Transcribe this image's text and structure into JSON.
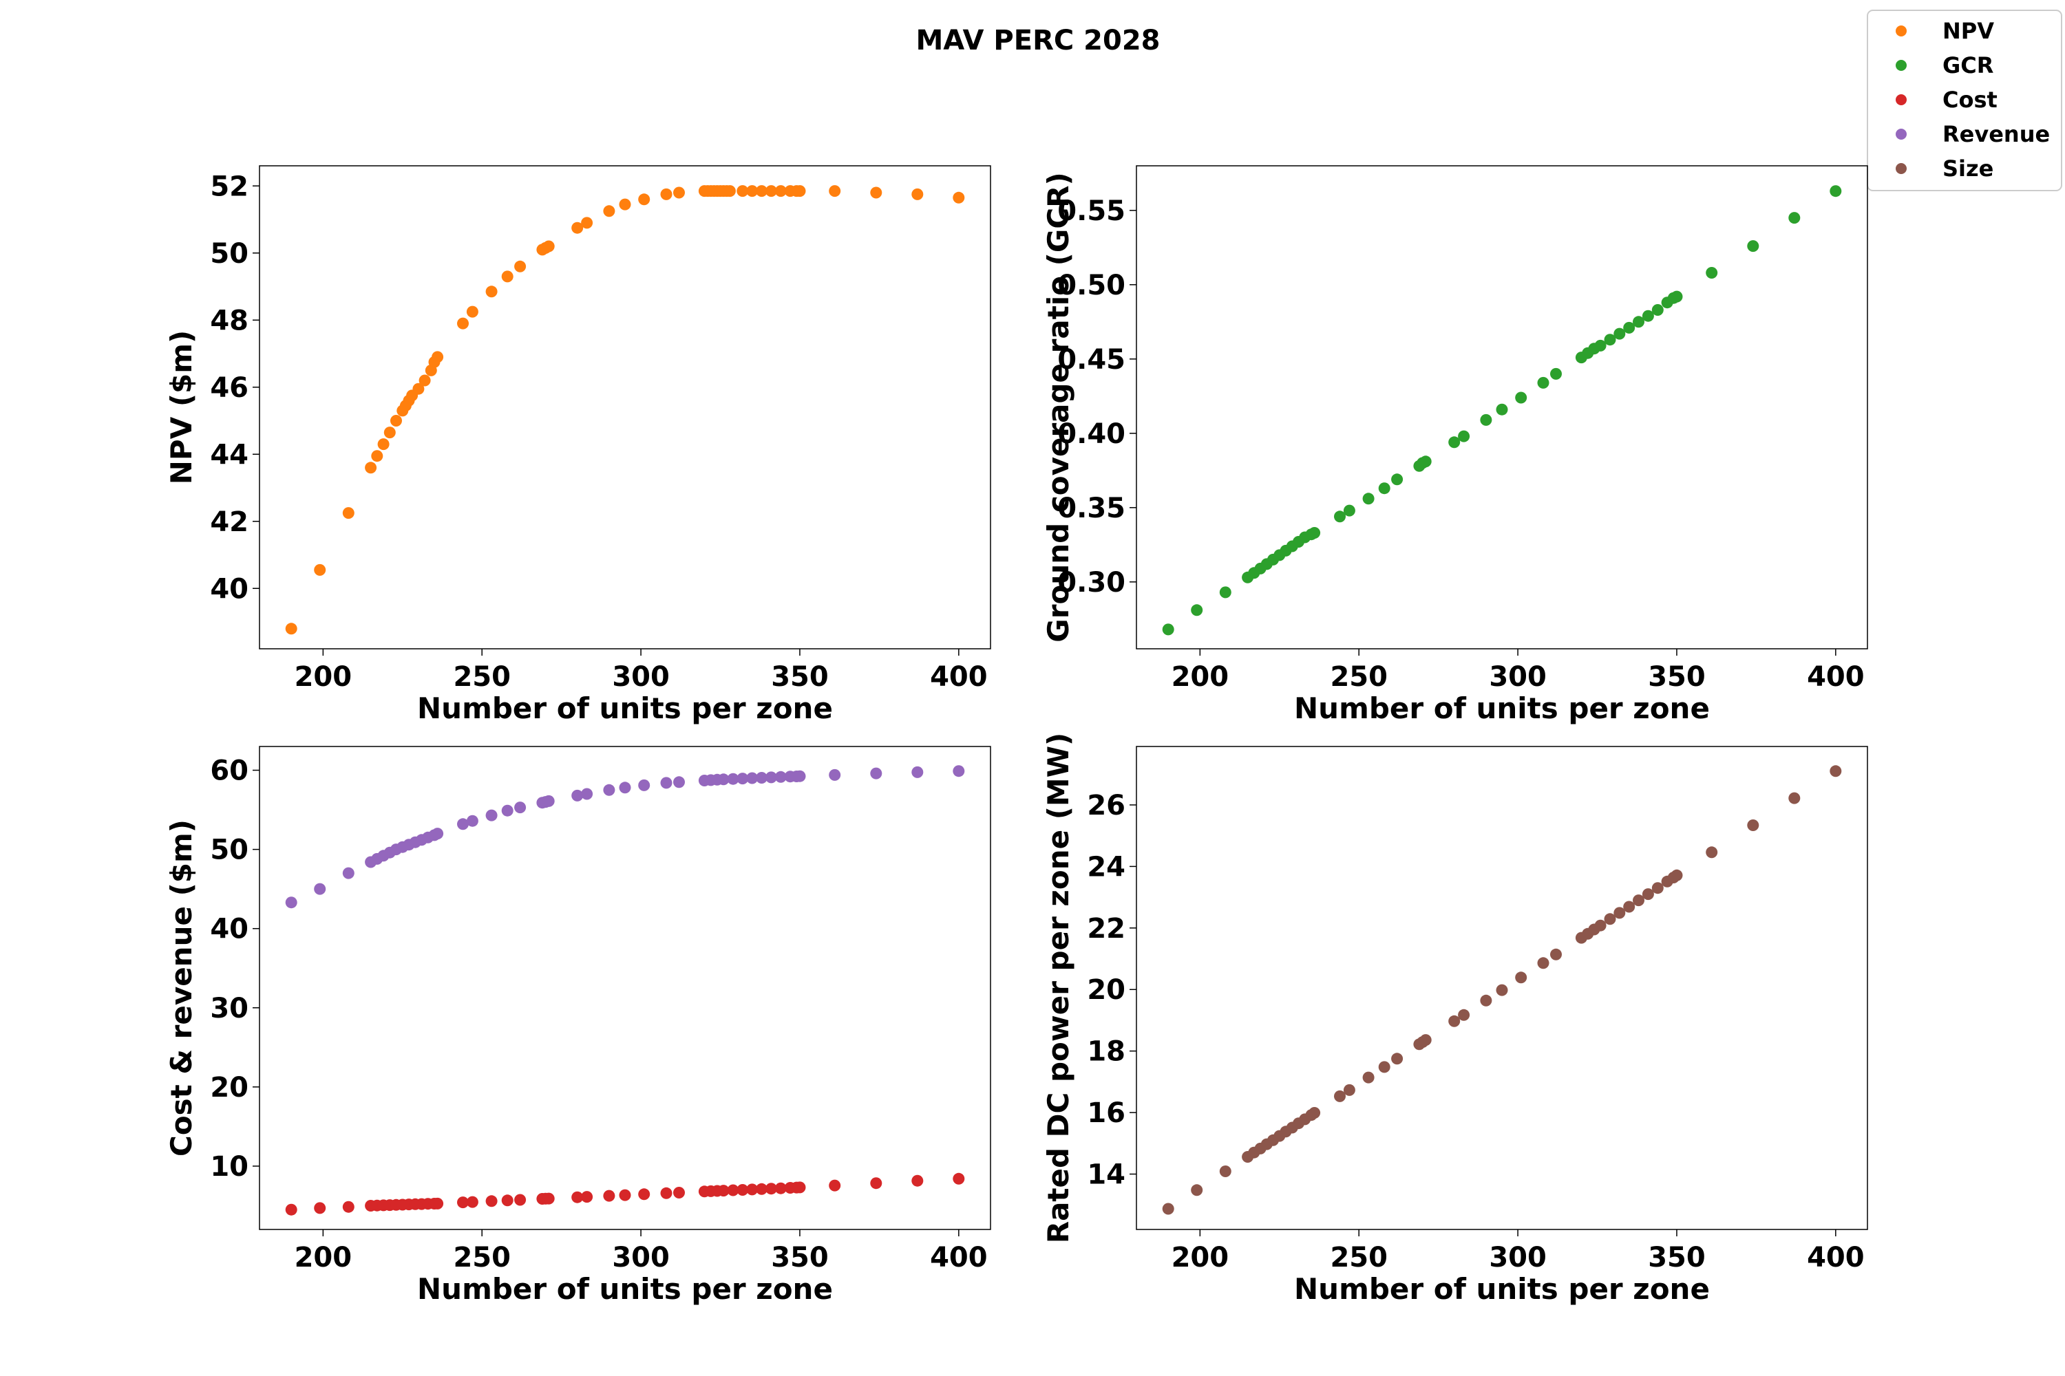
{
  "figure": {
    "title": "MAV PERC 2028"
  },
  "legend": {
    "entries": [
      {
        "label": "NPV",
        "color": "#ff7f0e"
      },
      {
        "label": "GCR",
        "color": "#2ca02c"
      },
      {
        "label": "Cost",
        "color": "#d62728"
      },
      {
        "label": "Revenue",
        "color": "#9467bd"
      },
      {
        "label": "Size",
        "color": "#8c564b"
      }
    ]
  },
  "chart_data": [
    {
      "type": "scatter",
      "title": "",
      "xlabel": "Number of units per zone",
      "ylabel": "NPV ($m)",
      "xlim": [
        180,
        410
      ],
      "ylim": [
        38.2,
        52.6
      ],
      "xticks": [
        200,
        250,
        300,
        350,
        400
      ],
      "yticks": [
        40,
        42,
        44,
        46,
        48,
        50,
        52
      ],
      "series": [
        {
          "color": "#ff7f0e",
          "x": [
            190,
            199,
            208,
            215,
            217,
            219,
            221,
            223,
            225,
            226,
            227,
            228,
            230,
            232,
            234,
            235,
            236,
            244,
            247,
            253,
            258,
            262,
            269,
            270,
            271,
            280,
            283,
            290,
            295,
            301,
            308,
            312,
            320,
            321,
            322,
            323,
            324,
            325,
            326,
            327,
            328,
            332,
            335,
            338,
            341,
            344,
            347,
            349,
            350,
            361,
            374,
            387,
            400
          ],
          "y": [
            38.8,
            40.55,
            42.25,
            43.6,
            43.95,
            44.3,
            44.65,
            45.0,
            45.3,
            45.45,
            45.6,
            45.75,
            45.95,
            46.2,
            46.5,
            46.75,
            46.9,
            47.9,
            48.25,
            48.85,
            49.3,
            49.6,
            50.1,
            50.15,
            50.2,
            50.75,
            50.9,
            51.25,
            51.45,
            51.6,
            51.75,
            51.8,
            51.85,
            51.85,
            51.85,
            51.85,
            51.85,
            51.85,
            51.85,
            51.85,
            51.85,
            51.85,
            51.85,
            51.85,
            51.85,
            51.85,
            51.85,
            51.85,
            51.85,
            51.85,
            51.8,
            51.75,
            51.65
          ]
        }
      ]
    },
    {
      "type": "scatter",
      "title": "",
      "xlabel": "Number of units per zone",
      "ylabel": "Ground coverage ratio (GCR)",
      "xlim": [
        180,
        410
      ],
      "ylim": [
        0.255,
        0.58
      ],
      "xticks": [
        200,
        250,
        300,
        350,
        400
      ],
      "yticks": [
        0.3,
        0.35,
        0.4,
        0.45,
        0.5,
        0.55
      ],
      "ytick_labels": [
        "0.30",
        "0.35",
        "0.40",
        "0.45",
        "0.50",
        "0.55"
      ],
      "series": [
        {
          "color": "#2ca02c",
          "x": [
            190,
            199,
            208,
            215,
            217,
            219,
            221,
            223,
            225,
            227,
            229,
            231,
            233,
            235,
            236,
            244,
            247,
            253,
            258,
            262,
            269,
            270,
            271,
            280,
            283,
            290,
            295,
            301,
            308,
            312,
            320,
            322,
            324,
            326,
            329,
            332,
            335,
            338,
            341,
            344,
            347,
            349,
            350,
            361,
            374,
            387,
            400
          ],
          "y": [
            0.268,
            0.281,
            0.293,
            0.303,
            0.306,
            0.309,
            0.312,
            0.315,
            0.318,
            0.321,
            0.324,
            0.327,
            0.33,
            0.332,
            0.333,
            0.344,
            0.348,
            0.356,
            0.363,
            0.369,
            0.378,
            0.38,
            0.381,
            0.394,
            0.398,
            0.409,
            0.416,
            0.424,
            0.434,
            0.44,
            0.451,
            0.454,
            0.457,
            0.459,
            0.463,
            0.467,
            0.471,
            0.475,
            0.479,
            0.483,
            0.488,
            0.491,
            0.492,
            0.508,
            0.526,
            0.545,
            0.563
          ]
        }
      ]
    },
    {
      "type": "scatter",
      "title": "",
      "xlabel": "Number of units per zone",
      "ylabel": "Cost & revenue ($m)",
      "xlim": [
        180,
        410
      ],
      "ylim": [
        2.0,
        63.0
      ],
      "xticks": [
        200,
        250,
        300,
        350,
        400
      ],
      "yticks": [
        10,
        20,
        30,
        40,
        50,
        60
      ],
      "series": [
        {
          "color": "#d62728",
          "x": [
            190,
            199,
            208,
            215,
            217,
            219,
            221,
            223,
            225,
            227,
            229,
            231,
            233,
            235,
            236,
            244,
            247,
            253,
            258,
            262,
            269,
            270,
            271,
            280,
            283,
            290,
            295,
            301,
            308,
            312,
            320,
            322,
            324,
            326,
            329,
            332,
            335,
            338,
            341,
            344,
            347,
            349,
            350,
            361,
            374,
            387,
            400
          ],
          "y": [
            4.5,
            4.7,
            4.85,
            5.0,
            5.02,
            5.05,
            5.08,
            5.1,
            5.13,
            5.16,
            5.19,
            5.21,
            5.24,
            5.26,
            5.27,
            5.42,
            5.47,
            5.58,
            5.67,
            5.74,
            5.87,
            5.88,
            5.9,
            6.07,
            6.12,
            6.25,
            6.34,
            6.45,
            6.58,
            6.65,
            6.8,
            6.83,
            6.87,
            6.9,
            6.95,
            7.0,
            7.05,
            7.1,
            7.15,
            7.2,
            7.26,
            7.29,
            7.31,
            7.55,
            7.85,
            8.15,
            8.4
          ]
        },
        {
          "color": "#9467bd",
          "x": [
            190,
            199,
            208,
            215,
            217,
            219,
            221,
            223,
            225,
            227,
            229,
            231,
            233,
            235,
            236,
            244,
            247,
            253,
            258,
            262,
            269,
            270,
            271,
            280,
            283,
            290,
            295,
            301,
            308,
            312,
            320,
            322,
            324,
            326,
            329,
            332,
            335,
            338,
            341,
            344,
            347,
            349,
            350,
            361,
            374,
            387,
            400
          ],
          "y": [
            43.3,
            45.0,
            47.0,
            48.4,
            48.8,
            49.2,
            49.6,
            50.0,
            50.3,
            50.6,
            50.9,
            51.2,
            51.5,
            51.8,
            52.0,
            53.2,
            53.6,
            54.3,
            54.9,
            55.3,
            55.9,
            56.0,
            56.1,
            56.8,
            57.0,
            57.5,
            57.8,
            58.1,
            58.4,
            58.5,
            58.7,
            58.75,
            58.8,
            58.85,
            58.9,
            58.95,
            59.0,
            59.05,
            59.1,
            59.15,
            59.2,
            59.22,
            59.25,
            59.4,
            59.6,
            59.75,
            59.9
          ]
        }
      ]
    },
    {
      "type": "scatter",
      "title": "",
      "xlabel": "Number of units per zone",
      "ylabel": "Rated DC power per zone (MW)",
      "xlim": [
        180,
        410
      ],
      "ylim": [
        12.2,
        27.9
      ],
      "xticks": [
        200,
        250,
        300,
        350,
        400
      ],
      "yticks": [
        14,
        16,
        18,
        20,
        22,
        24,
        26
      ],
      "series": [
        {
          "color": "#8c564b",
          "x": [
            190,
            199,
            208,
            215,
            217,
            219,
            221,
            223,
            225,
            227,
            229,
            231,
            233,
            235,
            236,
            244,
            247,
            253,
            258,
            262,
            269,
            270,
            271,
            280,
            283,
            290,
            295,
            301,
            308,
            312,
            320,
            322,
            324,
            326,
            329,
            332,
            335,
            338,
            341,
            344,
            347,
            349,
            350,
            361,
            374,
            387,
            400
          ],
          "y": [
            12.87,
            13.48,
            14.09,
            14.56,
            14.7,
            14.83,
            14.97,
            15.1,
            15.24,
            15.38,
            15.51,
            15.65,
            15.78,
            15.92,
            15.99,
            16.53,
            16.73,
            17.14,
            17.48,
            17.75,
            18.22,
            18.29,
            18.36,
            18.97,
            19.17,
            19.64,
            19.98,
            20.39,
            20.86,
            21.14,
            21.68,
            21.81,
            21.95,
            22.08,
            22.29,
            22.49,
            22.69,
            22.9,
            23.1,
            23.3,
            23.51,
            23.64,
            23.71,
            24.46,
            25.34,
            26.22,
            27.1
          ]
        }
      ]
    }
  ]
}
